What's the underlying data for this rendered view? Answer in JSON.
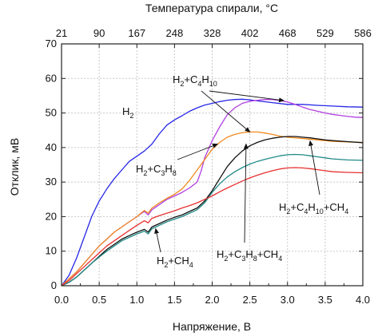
{
  "chart_data": {
    "type": "line",
    "title": "",
    "xlabel": "Напряжение, В",
    "ylabel": "Отклик, мВ",
    "top_xlabel": "Температура спирали, °C",
    "xlim": [
      0,
      4
    ],
    "ylim": [
      0,
      70
    ],
    "xticks": [
      "0.0",
      "0.5",
      "1.0",
      "1.5",
      "2.0",
      "2.5",
      "3.0",
      "3.5",
      "4.0"
    ],
    "yticks": [
      "0",
      "10",
      "20",
      "30",
      "40",
      "50",
      "60",
      "70"
    ],
    "top_ticks": [
      "21",
      "90",
      "167",
      "248",
      "328",
      "402",
      "468",
      "529",
      "586"
    ],
    "grid": true,
    "series": [
      {
        "id": "h2",
        "color": "#2727e6",
        "label_parts": [
          [
            "H",
            ""
          ],
          [
            "2",
            "sub"
          ]
        ],
        "points": [
          [
            0,
            0
          ],
          [
            0.1,
            3
          ],
          [
            0.2,
            8
          ],
          [
            0.3,
            14
          ],
          [
            0.4,
            20
          ],
          [
            0.5,
            24.5
          ],
          [
            0.6,
            28
          ],
          [
            0.7,
            31
          ],
          [
            0.8,
            33.5
          ],
          [
            0.9,
            36
          ],
          [
            1.0,
            37.5
          ],
          [
            1.1,
            39
          ],
          [
            1.2,
            41
          ],
          [
            1.3,
            44
          ],
          [
            1.4,
            46.5
          ],
          [
            1.5,
            48
          ],
          [
            1.6,
            49.2
          ],
          [
            1.7,
            50.5
          ],
          [
            1.8,
            51.5
          ],
          [
            1.9,
            52.3
          ],
          [
            2.0,
            52.8
          ],
          [
            2.1,
            53.3
          ],
          [
            2.2,
            53.7
          ],
          [
            2.3,
            53.9
          ],
          [
            2.4,
            54
          ],
          [
            2.5,
            53.8
          ],
          [
            2.6,
            53.5
          ],
          [
            2.8,
            53
          ],
          [
            3.0,
            52.5
          ],
          [
            3.2,
            52.5
          ],
          [
            3.4,
            52.2
          ],
          [
            3.6,
            52
          ],
          [
            3.8,
            51.8
          ],
          [
            4.0,
            51.7
          ]
        ]
      },
      {
        "id": "h2_c4h10",
        "color": "#b03fe0",
        "label_parts": [
          [
            "H",
            ""
          ],
          [
            "2",
            "sub"
          ],
          [
            "+C",
            ""
          ],
          [
            "4",
            "sub"
          ],
          [
            "H",
            ""
          ],
          [
            "10",
            "sub"
          ]
        ],
        "points": [
          [
            0,
            0
          ],
          [
            0.1,
            2
          ],
          [
            0.2,
            4
          ],
          [
            0.3,
            6.5
          ],
          [
            0.4,
            9
          ],
          [
            0.5,
            11.5
          ],
          [
            0.6,
            13.5
          ],
          [
            0.7,
            15.5
          ],
          [
            0.8,
            17
          ],
          [
            0.9,
            18.5
          ],
          [
            1.0,
            20
          ],
          [
            1.1,
            21.5
          ],
          [
            1.15,
            20.5
          ],
          [
            1.2,
            22
          ],
          [
            1.3,
            23.5
          ],
          [
            1.4,
            25
          ],
          [
            1.5,
            26
          ],
          [
            1.6,
            27
          ],
          [
            1.7,
            28.3
          ],
          [
            1.8,
            30
          ],
          [
            1.85,
            33
          ],
          [
            1.9,
            37
          ],
          [
            2.0,
            42
          ],
          [
            2.1,
            46
          ],
          [
            2.2,
            49.5
          ],
          [
            2.3,
            51.5
          ],
          [
            2.4,
            52.8
          ],
          [
            2.5,
            53.4
          ],
          [
            2.6,
            53.7
          ],
          [
            2.7,
            53.9
          ],
          [
            2.8,
            53.9
          ],
          [
            2.9,
            53.6
          ],
          [
            3.0,
            53.2
          ],
          [
            3.1,
            52.5
          ],
          [
            3.2,
            51.7
          ],
          [
            3.3,
            51
          ],
          [
            3.4,
            50.5
          ],
          [
            3.5,
            50
          ],
          [
            3.6,
            49.6
          ],
          [
            3.7,
            49.3
          ],
          [
            3.8,
            49
          ],
          [
            3.9,
            48.8
          ],
          [
            4.0,
            48.7
          ]
        ]
      },
      {
        "id": "h2_c3h8",
        "color": "#f08a1f",
        "label_parts": [
          [
            "H",
            ""
          ],
          [
            "2",
            "sub"
          ],
          [
            "+C",
            ""
          ],
          [
            "3",
            "sub"
          ],
          [
            "H",
            ""
          ],
          [
            "8",
            "sub"
          ]
        ],
        "points": [
          [
            0,
            0
          ],
          [
            0.1,
            2
          ],
          [
            0.2,
            4
          ],
          [
            0.3,
            6.5
          ],
          [
            0.4,
            9
          ],
          [
            0.5,
            11.5
          ],
          [
            0.6,
            13.5
          ],
          [
            0.7,
            15.5
          ],
          [
            0.8,
            17
          ],
          [
            0.9,
            18.5
          ],
          [
            1.0,
            20
          ],
          [
            1.1,
            21.8
          ],
          [
            1.15,
            21
          ],
          [
            1.2,
            22.5
          ],
          [
            1.3,
            24
          ],
          [
            1.4,
            25.3
          ],
          [
            1.5,
            26.5
          ],
          [
            1.6,
            28
          ],
          [
            1.7,
            30.5
          ],
          [
            1.8,
            33.5
          ],
          [
            1.9,
            36.5
          ],
          [
            2.0,
            39.5
          ],
          [
            2.1,
            41.5
          ],
          [
            2.2,
            43
          ],
          [
            2.3,
            43.8
          ],
          [
            2.4,
            44.3
          ],
          [
            2.5,
            44.5
          ],
          [
            2.6,
            44.5
          ],
          [
            2.7,
            44.2
          ],
          [
            2.8,
            43.8
          ],
          [
            2.9,
            43.3
          ],
          [
            3.0,
            43
          ],
          [
            3.2,
            42.6
          ],
          [
            3.4,
            42.2
          ],
          [
            3.6,
            41.8
          ],
          [
            3.8,
            41.6
          ],
          [
            4.0,
            41.5
          ]
        ]
      },
      {
        "id": "h2_c4h10_ch4",
        "color": "#111111",
        "label_parts": [
          [
            "H",
            ""
          ],
          [
            "2",
            "sub"
          ],
          [
            "+C",
            ""
          ],
          [
            "4",
            "sub"
          ],
          [
            "H",
            ""
          ],
          [
            "10",
            "sub"
          ],
          [
            "+CH",
            ""
          ],
          [
            "4",
            "sub"
          ]
        ],
        "points": [
          [
            0,
            0
          ],
          [
            0.1,
            1
          ],
          [
            0.2,
            2.5
          ],
          [
            0.3,
            4.5
          ],
          [
            0.4,
            6.5
          ],
          [
            0.5,
            8.5
          ],
          [
            0.6,
            10.5
          ],
          [
            0.7,
            12
          ],
          [
            0.8,
            13.5
          ],
          [
            0.9,
            14.5
          ],
          [
            1.0,
            15.5
          ],
          [
            1.1,
            16.3
          ],
          [
            1.15,
            15.5
          ],
          [
            1.2,
            17
          ],
          [
            1.3,
            18
          ],
          [
            1.4,
            19
          ],
          [
            1.5,
            19.8
          ],
          [
            1.6,
            20.5
          ],
          [
            1.7,
            21.5
          ],
          [
            1.8,
            22.5
          ],
          [
            1.9,
            24.5
          ],
          [
            2.0,
            27.5
          ],
          [
            2.1,
            31
          ],
          [
            2.2,
            34.5
          ],
          [
            2.3,
            37
          ],
          [
            2.4,
            39
          ],
          [
            2.5,
            40.5
          ],
          [
            2.6,
            41.5
          ],
          [
            2.7,
            42.2
          ],
          [
            2.8,
            42.7
          ],
          [
            2.9,
            43
          ],
          [
            3.0,
            43.2
          ],
          [
            3.1,
            43.2
          ],
          [
            3.2,
            43
          ],
          [
            3.3,
            42.8
          ],
          [
            3.4,
            42.5
          ],
          [
            3.5,
            42.2
          ],
          [
            3.6,
            42
          ],
          [
            3.8,
            41.7
          ],
          [
            4.0,
            41.4
          ]
        ]
      },
      {
        "id": "h2_c3h8_ch4",
        "color": "#218a88",
        "label_parts": [
          [
            "H",
            ""
          ],
          [
            "2",
            "sub"
          ],
          [
            "+C",
            ""
          ],
          [
            "3",
            "sub"
          ],
          [
            "H",
            ""
          ],
          [
            "8",
            "sub"
          ],
          [
            "+CH",
            ""
          ],
          [
            "4",
            "sub"
          ]
        ],
        "points": [
          [
            0,
            0
          ],
          [
            0.1,
            1
          ],
          [
            0.2,
            2.5
          ],
          [
            0.3,
            4.5
          ],
          [
            0.4,
            6.5
          ],
          [
            0.5,
            8.3
          ],
          [
            0.6,
            10
          ],
          [
            0.7,
            11.5
          ],
          [
            0.8,
            13
          ],
          [
            0.9,
            14
          ],
          [
            1.0,
            15
          ],
          [
            1.1,
            15.8
          ],
          [
            1.15,
            15
          ],
          [
            1.2,
            16.5
          ],
          [
            1.3,
            17.5
          ],
          [
            1.4,
            18.5
          ],
          [
            1.5,
            19.3
          ],
          [
            1.6,
            20
          ],
          [
            1.7,
            21
          ],
          [
            1.8,
            22
          ],
          [
            1.9,
            24
          ],
          [
            2.0,
            27
          ],
          [
            2.1,
            29.5
          ],
          [
            2.2,
            31.5
          ],
          [
            2.3,
            33
          ],
          [
            2.4,
            34.2
          ],
          [
            2.5,
            35.2
          ],
          [
            2.6,
            36
          ],
          [
            2.7,
            36.6
          ],
          [
            2.8,
            37.1
          ],
          [
            2.9,
            37.6
          ],
          [
            3.0,
            37.9
          ],
          [
            3.1,
            38
          ],
          [
            3.2,
            37.9
          ],
          [
            3.3,
            37.6
          ],
          [
            3.4,
            37.3
          ],
          [
            3.5,
            37
          ],
          [
            3.6,
            36.7
          ],
          [
            3.8,
            36.4
          ],
          [
            4.0,
            36.3
          ]
        ]
      },
      {
        "id": "h2_ch4",
        "color": "#e83030",
        "label_parts": [
          [
            "H",
            ""
          ],
          [
            "2",
            "sub"
          ],
          [
            "+CH",
            ""
          ],
          [
            "4",
            "sub"
          ]
        ],
        "points": [
          [
            0,
            0
          ],
          [
            0.1,
            1.5
          ],
          [
            0.2,
            3.5
          ],
          [
            0.3,
            5.5
          ],
          [
            0.4,
            7.5
          ],
          [
            0.5,
            9.5
          ],
          [
            0.6,
            11.5
          ],
          [
            0.7,
            13
          ],
          [
            0.8,
            14.5
          ],
          [
            0.9,
            16
          ],
          [
            1.0,
            17.5
          ],
          [
            1.1,
            18.8
          ],
          [
            1.15,
            18.2
          ],
          [
            1.2,
            19.5
          ],
          [
            1.3,
            20.3
          ],
          [
            1.4,
            21
          ],
          [
            1.5,
            21.7
          ],
          [
            1.6,
            22.5
          ],
          [
            1.7,
            23.2
          ],
          [
            1.8,
            24
          ],
          [
            1.9,
            25
          ],
          [
            2.0,
            26
          ],
          [
            2.1,
            27.2
          ],
          [
            2.2,
            28.3
          ],
          [
            2.3,
            29.3
          ],
          [
            2.4,
            30.3
          ],
          [
            2.5,
            31.2
          ],
          [
            2.6,
            32
          ],
          [
            2.7,
            32.7
          ],
          [
            2.8,
            33.3
          ],
          [
            2.9,
            33.8
          ],
          [
            3.0,
            34.1
          ],
          [
            3.1,
            34.2
          ],
          [
            3.2,
            34.1
          ],
          [
            3.3,
            33.9
          ],
          [
            3.4,
            33.6
          ],
          [
            3.5,
            33.3
          ],
          [
            3.6,
            33
          ],
          [
            3.8,
            32.8
          ],
          [
            4.0,
            32.7
          ]
        ]
      }
    ]
  }
}
